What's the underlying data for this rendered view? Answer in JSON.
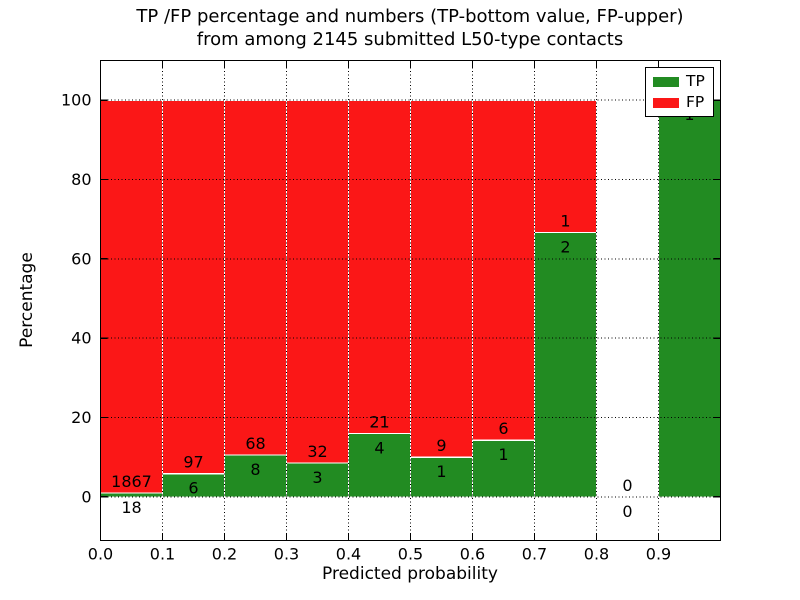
{
  "figure": {
    "title_line1": "TP /FP percentage and numbers (TP-bottom value, FP-upper)",
    "title_line2": "from among 2145 submitted L50-type contacts",
    "total_submitted": 2145
  },
  "chart_data": {
    "type": "bar",
    "stacked": true,
    "title": "TP /FP percentage and numbers (TP-bottom value, FP-upper) from among 2145 submitted L50-type contacts",
    "xlabel": "Predicted probability",
    "ylabel": "Percentage",
    "xlim": [
      0.0,
      1.0
    ],
    "ylim": [
      -11,
      110
    ],
    "x_tick_values": [
      0.0,
      0.1,
      0.2,
      0.3,
      0.4,
      0.5,
      0.6,
      0.7,
      0.8,
      0.9
    ],
    "x_tick_labels": [
      "0.0",
      "0.1",
      "0.2",
      "0.3",
      "0.4",
      "0.5",
      "0.6",
      "0.7",
      "0.8",
      "0.9"
    ],
    "y_tick_values": [
      0,
      20,
      40,
      60,
      80,
      100
    ],
    "y_tick_labels": [
      "0",
      "20",
      "40",
      "60",
      "80",
      "100"
    ],
    "grid": "dotted",
    "colors": {
      "tp": "#228b22",
      "fp": "#fb1717",
      "bar_edge": "#ffffff",
      "grid": "#000000"
    },
    "legend": {
      "position": "upper-right",
      "entries": [
        {
          "label": "TP",
          "color": "#228b22"
        },
        {
          "label": "FP",
          "color": "#fb1717"
        }
      ]
    },
    "bins": [
      {
        "x_start": 0.0,
        "x_end": 0.1,
        "tp_count": 18,
        "fp_count": 1867,
        "tp_pct": 0.95,
        "fp_pct": 99.05,
        "tp_label": "18",
        "fp_label": "1867"
      },
      {
        "x_start": 0.1,
        "x_end": 0.2,
        "tp_count": 6,
        "fp_count": 97,
        "tp_pct": 5.83,
        "fp_pct": 94.17,
        "tp_label": "6",
        "fp_label": "97"
      },
      {
        "x_start": 0.2,
        "x_end": 0.3,
        "tp_count": 8,
        "fp_count": 68,
        "tp_pct": 10.53,
        "fp_pct": 89.47,
        "tp_label": "8",
        "fp_label": "68"
      },
      {
        "x_start": 0.3,
        "x_end": 0.4,
        "tp_count": 3,
        "fp_count": 32,
        "tp_pct": 8.57,
        "fp_pct": 91.43,
        "tp_label": "3",
        "fp_label": "32"
      },
      {
        "x_start": 0.4,
        "x_end": 0.5,
        "tp_count": 4,
        "fp_count": 21,
        "tp_pct": 16.0,
        "fp_pct": 84.0,
        "tp_label": "4",
        "fp_label": "21"
      },
      {
        "x_start": 0.5,
        "x_end": 0.6,
        "tp_count": 1,
        "fp_count": 9,
        "tp_pct": 10.0,
        "fp_pct": 90.0,
        "tp_label": "1",
        "fp_label": "9"
      },
      {
        "x_start": 0.6,
        "x_end": 0.7,
        "tp_count": 1,
        "fp_count": 6,
        "tp_pct": 14.29,
        "fp_pct": 85.71,
        "tp_label": "1",
        "fp_label": "6"
      },
      {
        "x_start": 0.7,
        "x_end": 0.8,
        "tp_count": 2,
        "fp_count": 1,
        "tp_pct": 66.67,
        "fp_pct": 33.33,
        "tp_label": "2",
        "fp_label": "1"
      },
      {
        "x_start": 0.8,
        "x_end": 0.9,
        "tp_count": 0,
        "fp_count": 0,
        "tp_pct": 0,
        "fp_pct": 0,
        "tp_label": "0",
        "fp_label": "0"
      },
      {
        "x_start": 0.9,
        "x_end": 1.0,
        "tp_count": 1,
        "fp_count": 0,
        "tp_pct": 100,
        "fp_pct": 0,
        "tp_label": "1",
        "fp_label": null
      }
    ]
  }
}
